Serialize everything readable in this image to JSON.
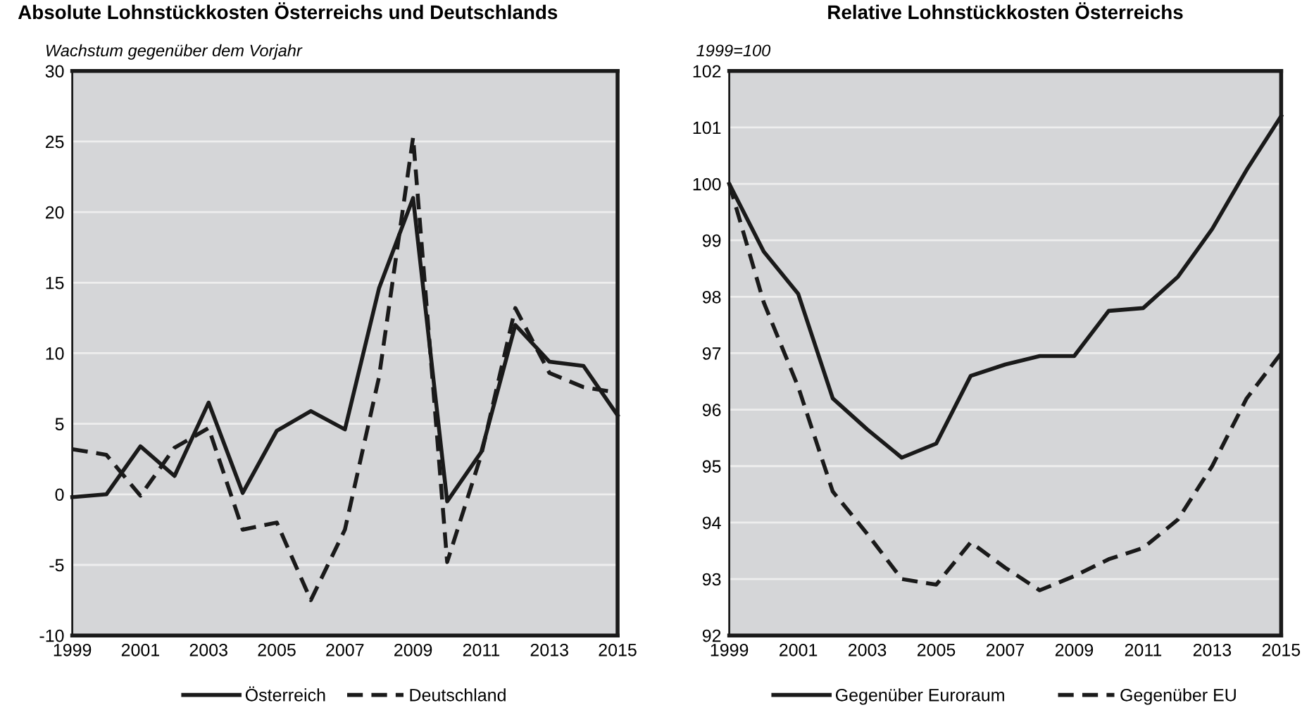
{
  "chart_data": [
    {
      "type": "line",
      "title": "Absolute Lohnstückkosten Österreichs und Deutschlands",
      "ylabel": "Wachstum gegenüber dem Vorjahr",
      "x": [
        1999,
        2000,
        2001,
        2002,
        2003,
        2004,
        2005,
        2006,
        2007,
        2008,
        2009,
        2010,
        2011,
        2012,
        2013,
        2014,
        2015
      ],
      "series": [
        {
          "name": "Österreich",
          "color": "#1a1a1a",
          "line_style": "solid",
          "values": [
            -0.2,
            0,
            3.4,
            1.3,
            6.5,
            0.1,
            4.5,
            5.9,
            4.6,
            14.6,
            21.0,
            -0.5,
            3.0,
            12.0,
            9.4,
            9.1,
            5.6
          ]
        },
        {
          "name": "Deutschland",
          "color": "#1a1a1a",
          "line_style": "dashed",
          "values": [
            3.2,
            2.8,
            -0.1,
            3.3,
            4.7,
            -2.5,
            -2.0,
            -7.5,
            -2.5,
            8.3,
            25.3,
            -4.8,
            2.8,
            13.2,
            8.6,
            7.6,
            7.2
          ]
        }
      ],
      "xlim": [
        1999,
        2015
      ],
      "xticks": [
        1999,
        2001,
        2003,
        2005,
        2007,
        2009,
        2011,
        2013,
        2015
      ],
      "ylim": [
        -10,
        30
      ],
      "yticks": [
        -10,
        -5,
        0,
        5,
        10,
        15,
        20,
        25,
        30
      ],
      "grid": "y",
      "legend": "bottom"
    },
    {
      "type": "line",
      "title": "Relative Lohnstückkosten Österreichs",
      "ylabel": "1999=100",
      "x": [
        1999,
        2000,
        2001,
        2002,
        2003,
        2004,
        2005,
        2006,
        2007,
        2008,
        2009,
        2010,
        2011,
        2012,
        2013,
        2014,
        2015
      ],
      "series": [
        {
          "name": "Gegenüber Euroraum",
          "color": "#1a1a1a",
          "line_style": "solid",
          "values": [
            100,
            98.8,
            98.05,
            96.2,
            95.65,
            95.15,
            95.4,
            96.6,
            96.8,
            96.95,
            96.95,
            97.75,
            97.8,
            98.35,
            99.2,
            100.25,
            101.2
          ]
        },
        {
          "name": "Gegenüber EU",
          "color": "#1a1a1a",
          "line_style": "dashed",
          "values": [
            100,
            97.9,
            96.4,
            94.55,
            93.8,
            93.0,
            92.9,
            93.65,
            93.2,
            92.8,
            93.05,
            93.35,
            93.55,
            94.05,
            95.0,
            96.2,
            97.0
          ]
        }
      ],
      "xlim": [
        1999,
        2015
      ],
      "xticks": [
        1999,
        2001,
        2003,
        2005,
        2007,
        2009,
        2011,
        2013,
        2015
      ],
      "ylim": [
        92,
        102
      ],
      "yticks": [
        92,
        93,
        94,
        95,
        96,
        97,
        98,
        99,
        100,
        101,
        102
      ],
      "grid": "y",
      "legend": "bottom"
    }
  ]
}
